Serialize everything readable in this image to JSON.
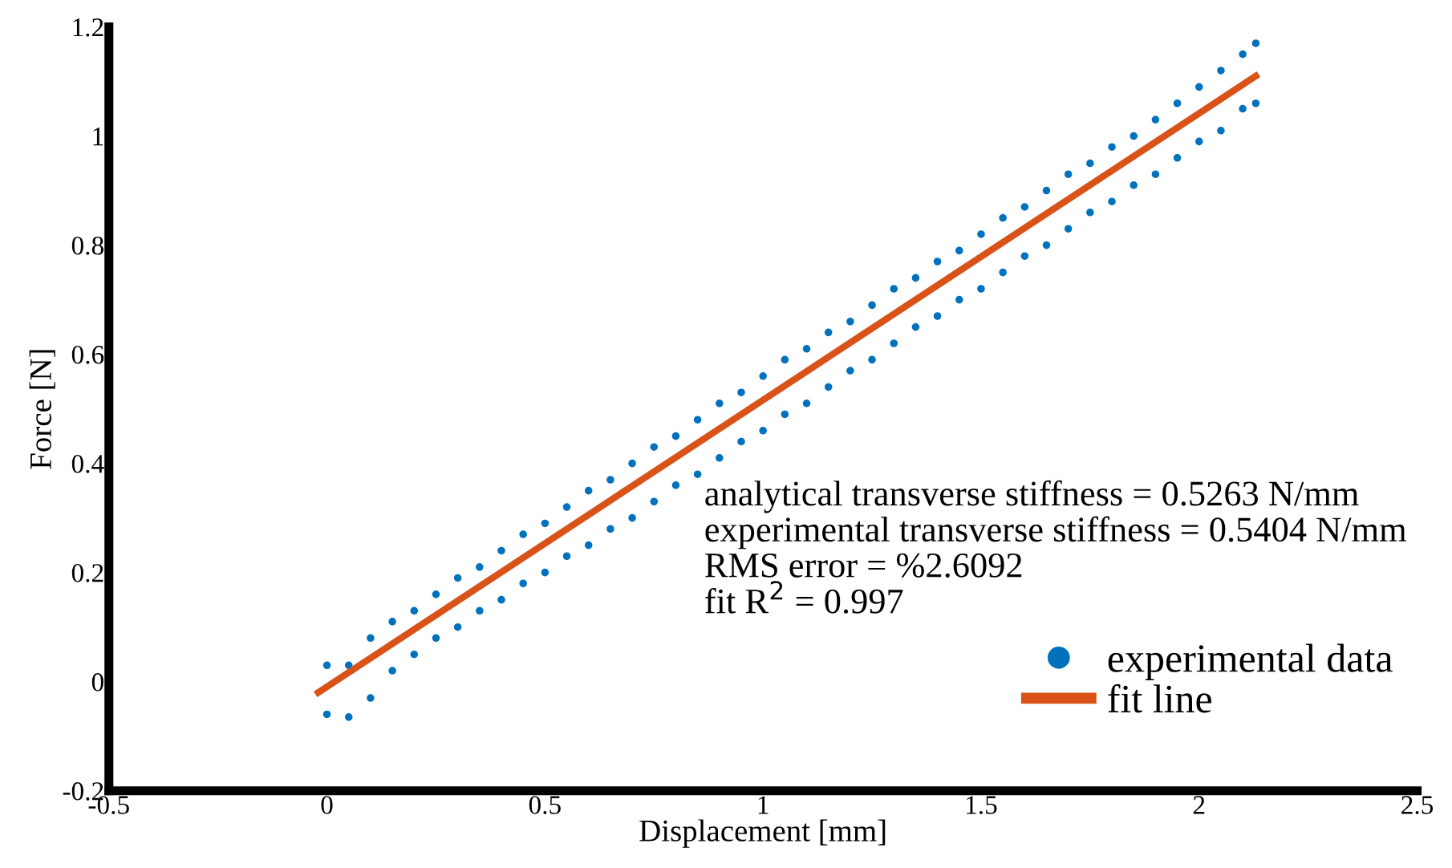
{
  "chart_data": {
    "type": "scatter",
    "xlabel": "Displacement [mm]",
    "ylabel": "Force [N]",
    "xlim": [
      -0.5,
      2.5
    ],
    "ylim": [
      -0.2,
      1.2
    ],
    "xticks": [
      -0.5,
      0,
      0.5,
      1,
      1.5,
      2,
      2.5
    ],
    "yticks": [
      -0.2,
      0,
      0.2,
      0.4,
      0.6,
      0.8,
      1,
      1.2
    ],
    "grid": false,
    "legend": "bottom right",
    "annotations": [
      "analytical transverse stiffness = 0.5263 N/mm",
      "experimental transverse stiffness = 0.5404 N/mm",
      "RMS error = %2.6092",
      "fit R$^{2}$ = 0.997"
    ],
    "series": [
      {
        "name": "experimental data",
        "marker": "circle",
        "color": "#0072bd",
        "x": [
          0,
          0,
          0.05,
          0.05,
          0.1,
          0.1,
          0.15,
          0.15,
          0.2,
          0.2,
          0.25,
          0.25,
          0.3,
          0.3,
          0.35,
          0.35,
          0.4,
          0.4,
          0.45,
          0.45,
          0.5,
          0.5,
          0.55,
          0.55,
          0.6,
          0.6,
          0.65,
          0.65,
          0.7,
          0.7,
          0.75,
          0.75,
          0.8,
          0.8,
          0.85,
          0.85,
          0.9,
          0.9,
          0.95,
          0.95,
          1,
          1,
          1.05,
          1.05,
          1.1,
          1.1,
          1.15,
          1.15,
          1.2,
          1.2,
          1.25,
          1.25,
          1.3,
          1.3,
          1.35,
          1.35,
          1.4,
          1.4,
          1.45,
          1.45,
          1.5,
          1.5,
          1.55,
          1.55,
          1.6,
          1.6,
          1.65,
          1.65,
          1.7,
          1.7,
          1.75,
          1.75,
          1.8,
          1.8,
          1.85,
          1.85,
          1.9,
          1.9,
          1.95,
          1.95,
          2,
          2,
          2.05,
          2.05,
          2.1,
          2.1,
          2.13,
          2.13
        ],
        "values": [
          0.03,
          -0.06,
          0.03,
          -0.065,
          0.08,
          -0.03,
          0.11,
          0.02,
          0.13,
          0.05,
          0.16,
          0.08,
          0.19,
          0.1,
          0.21,
          0.13,
          0.24,
          0.15,
          0.27,
          0.18,
          0.29,
          0.2,
          0.32,
          0.23,
          0.35,
          0.25,
          0.37,
          0.28,
          0.4,
          0.3,
          0.43,
          0.33,
          0.45,
          0.36,
          0.48,
          0.38,
          0.51,
          0.41,
          0.53,
          0.44,
          0.56,
          0.46,
          0.59,
          0.49,
          0.61,
          0.51,
          0.64,
          0.54,
          0.66,
          0.57,
          0.69,
          0.59,
          0.72,
          0.62,
          0.74,
          0.65,
          0.77,
          0.67,
          0.79,
          0.7,
          0.82,
          0.72,
          0.85,
          0.75,
          0.87,
          0.78,
          0.9,
          0.8,
          0.93,
          0.83,
          0.95,
          0.86,
          0.98,
          0.88,
          1.0,
          0.91,
          1.03,
          0.93,
          1.06,
          0.96,
          1.09,
          0.99,
          1.12,
          1.01,
          1.15,
          1.05,
          1.17,
          1.06
        ]
      },
      {
        "name": "fit line",
        "type": "line",
        "color": "#d95319",
        "x": [
          -0.02,
          2.13
        ],
        "values": [
          -0.02,
          1.11
        ]
      }
    ]
  }
}
